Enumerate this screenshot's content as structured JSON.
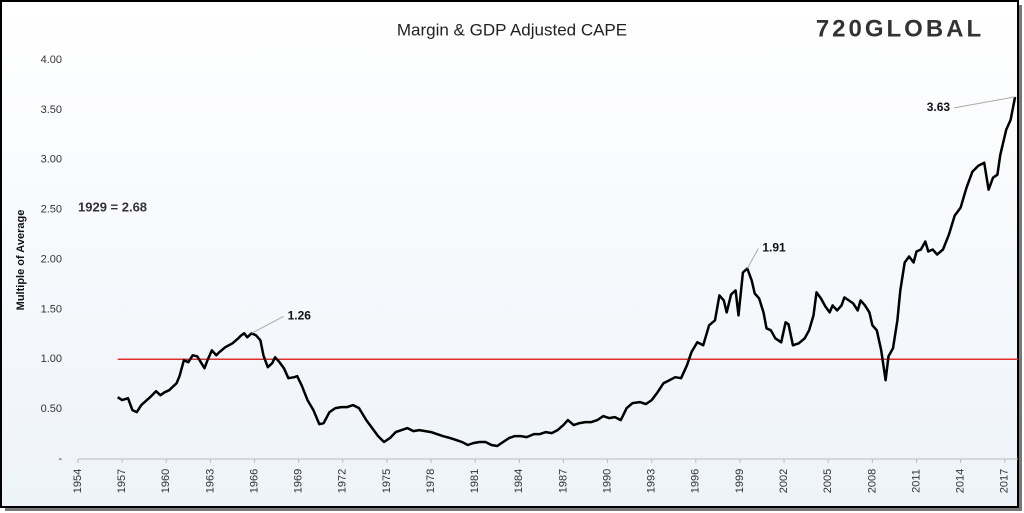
{
  "chart_data": {
    "type": "line",
    "title": "Margin & GDP Adjusted CAPE",
    "logo": "720GLOBAL",
    "logo_color": "#1f3a6e",
    "y_label": "Multiple of Average",
    "note": "1929 = 2.68",
    "note_color": "#e02020",
    "reference_line": {
      "value": 1,
      "color": "#e03030"
    },
    "xlim": [
      1954,
      2017.9
    ],
    "ylim": [
      0,
      4
    ],
    "xticks": [
      1954,
      1957,
      1960,
      1963,
      1966,
      1969,
      1972,
      1975,
      1978,
      1981,
      1984,
      1987,
      1990,
      1993,
      1996,
      1999,
      2002,
      2005,
      2008,
      2011,
      2014,
      2017
    ],
    "yticks": [
      {
        "value": 0,
        "label": "-"
      },
      {
        "value": 0.5,
        "label": "0.50"
      },
      {
        "value": 1,
        "label": "1.00"
      },
      {
        "value": 1.5,
        "label": "1.50"
      },
      {
        "value": 2,
        "label": "2.00"
      },
      {
        "value": 2.5,
        "label": "2.50"
      },
      {
        "value": 3,
        "label": "3.00"
      },
      {
        "value": 3.5,
        "label": "3.50"
      },
      {
        "value": 4,
        "label": "4.00"
      }
    ],
    "x": [
      1956.7,
      1957.0,
      1957.4,
      1957.7,
      1958.0,
      1958.3,
      1958.9,
      1959.3,
      1959.6,
      1959.9,
      1960.2,
      1960.7,
      1960.9,
      1961.2,
      1961.5,
      1961.8,
      1962.1,
      1962.6,
      1962.8,
      1963.1,
      1963.4,
      1963.6,
      1964.0,
      1964.5,
      1964.9,
      1965.1,
      1965.3,
      1965.5,
      1965.8,
      1966.1,
      1966.4,
      1966.6,
      1966.9,
      1967.2,
      1967.4,
      1967.7,
      1968.0,
      1968.3,
      1968.7,
      1968.9,
      1969.2,
      1969.6,
      1970.0,
      1970.4,
      1970.7,
      1971.1,
      1971.5,
      1971.9,
      1972.3,
      1972.7,
      1973.1,
      1973.6,
      1974.0,
      1974.4,
      1974.8,
      1975.2,
      1975.6,
      1976.0,
      1976.4,
      1976.8,
      1977.2,
      1977.6,
      1978.0,
      1978.4,
      1978.8,
      1979.3,
      1979.7,
      1980.1,
      1980.5,
      1980.9,
      1981.3,
      1981.7,
      1982.1,
      1982.5,
      1982.9,
      1983.3,
      1983.7,
      1984.1,
      1984.5,
      1985.0,
      1985.4,
      1985.8,
      1986.2,
      1986.6,
      1987.0,
      1987.3,
      1987.7,
      1988.1,
      1988.5,
      1988.9,
      1989.3,
      1989.7,
      1990.1,
      1990.5,
      1990.9,
      1991.3,
      1991.7,
      1992.2,
      1992.6,
      1993.0,
      1993.4,
      1993.8,
      1994.2,
      1994.6,
      1995.0,
      1995.4,
      1995.7,
      1996.1,
      1996.5,
      1996.9,
      1997.3,
      1997.6,
      1997.9,
      1998.1,
      1998.4,
      1998.7,
      1998.9,
      1999.2,
      1999.5,
      1999.8,
      2000.0,
      2000.3,
      2000.6,
      2000.8,
      2001.1,
      2001.4,
      2001.8,
      2002.1,
      2002.3,
      2002.6,
      2003.0,
      2003.4,
      2003.7,
      2004.0,
      2004.2,
      2004.5,
      2004.8,
      2005.1,
      2005.3,
      2005.6,
      2005.9,
      2006.1,
      2006.4,
      2006.7,
      2007.0,
      2007.2,
      2007.5,
      2007.8,
      2008.0,
      2008.3,
      2008.6,
      2008.9,
      2009.1,
      2009.4,
      2009.7,
      2009.9,
      2010.2,
      2010.5,
      2010.8,
      2011.0,
      2011.3,
      2011.6,
      2011.8,
      2012.1,
      2012.4,
      2012.8,
      2013.2,
      2013.6,
      2014.0,
      2014.4,
      2014.8,
      2015.2,
      2015.6,
      2015.9,
      2016.2,
      2016.5,
      2016.7,
      2017.1,
      2017.4,
      2017.7
    ],
    "series": [
      {
        "color": "#000000",
        "values": [
          0.62,
          0.59,
          0.61,
          0.49,
          0.47,
          0.54,
          0.62,
          0.68,
          0.64,
          0.67,
          0.69,
          0.76,
          0.83,
          0.99,
          0.97,
          1.04,
          1.03,
          0.91,
          0.99,
          1.09,
          1.04,
          1.07,
          1.12,
          1.16,
          1.21,
          1.24,
          1.26,
          1.22,
          1.26,
          1.24,
          1.19,
          1.04,
          0.92,
          0.96,
          1.02,
          0.97,
          0.91,
          0.81,
          0.82,
          0.83,
          0.74,
          0.59,
          0.49,
          0.35,
          0.36,
          0.47,
          0.51,
          0.52,
          0.52,
          0.54,
          0.51,
          0.39,
          0.31,
          0.23,
          0.17,
          0.21,
          0.27,
          0.29,
          0.31,
          0.28,
          0.29,
          0.28,
          0.27,
          0.25,
          0.23,
          0.21,
          0.19,
          0.17,
          0.14,
          0.16,
          0.17,
          0.17,
          0.14,
          0.13,
          0.17,
          0.21,
          0.23,
          0.23,
          0.22,
          0.25,
          0.25,
          0.27,
          0.26,
          0.29,
          0.34,
          0.39,
          0.34,
          0.36,
          0.37,
          0.37,
          0.39,
          0.43,
          0.41,
          0.42,
          0.39,
          0.51,
          0.56,
          0.57,
          0.55,
          0.59,
          0.67,
          0.76,
          0.79,
          0.82,
          0.81,
          0.94,
          1.07,
          1.17,
          1.14,
          1.34,
          1.39,
          1.64,
          1.59,
          1.47,
          1.65,
          1.69,
          1.44,
          1.87,
          1.91,
          1.79,
          1.66,
          1.61,
          1.47,
          1.31,
          1.29,
          1.21,
          1.17,
          1.37,
          1.35,
          1.14,
          1.16,
          1.21,
          1.29,
          1.44,
          1.67,
          1.61,
          1.53,
          1.47,
          1.54,
          1.49,
          1.54,
          1.62,
          1.59,
          1.56,
          1.49,
          1.59,
          1.54,
          1.47,
          1.34,
          1.29,
          1.09,
          0.79,
          1.03,
          1.11,
          1.39,
          1.69,
          1.97,
          2.03,
          1.97,
          2.08,
          2.1,
          2.18,
          2.08,
          2.1,
          2.05,
          2.1,
          2.25,
          2.44,
          2.52,
          2.72,
          2.88,
          2.94,
          2.97,
          2.7,
          2.82,
          2.85,
          3.05,
          3.3,
          3.4,
          3.63
        ]
      }
    ],
    "annotations": [
      {
        "label": "1.26",
        "x": 1965.8,
        "y": 1.26
      },
      {
        "label": "1.91",
        "x": 1999.5,
        "y": 1.91
      },
      {
        "label": "3.63",
        "x": 2017.7,
        "y": 3.63
      }
    ]
  }
}
